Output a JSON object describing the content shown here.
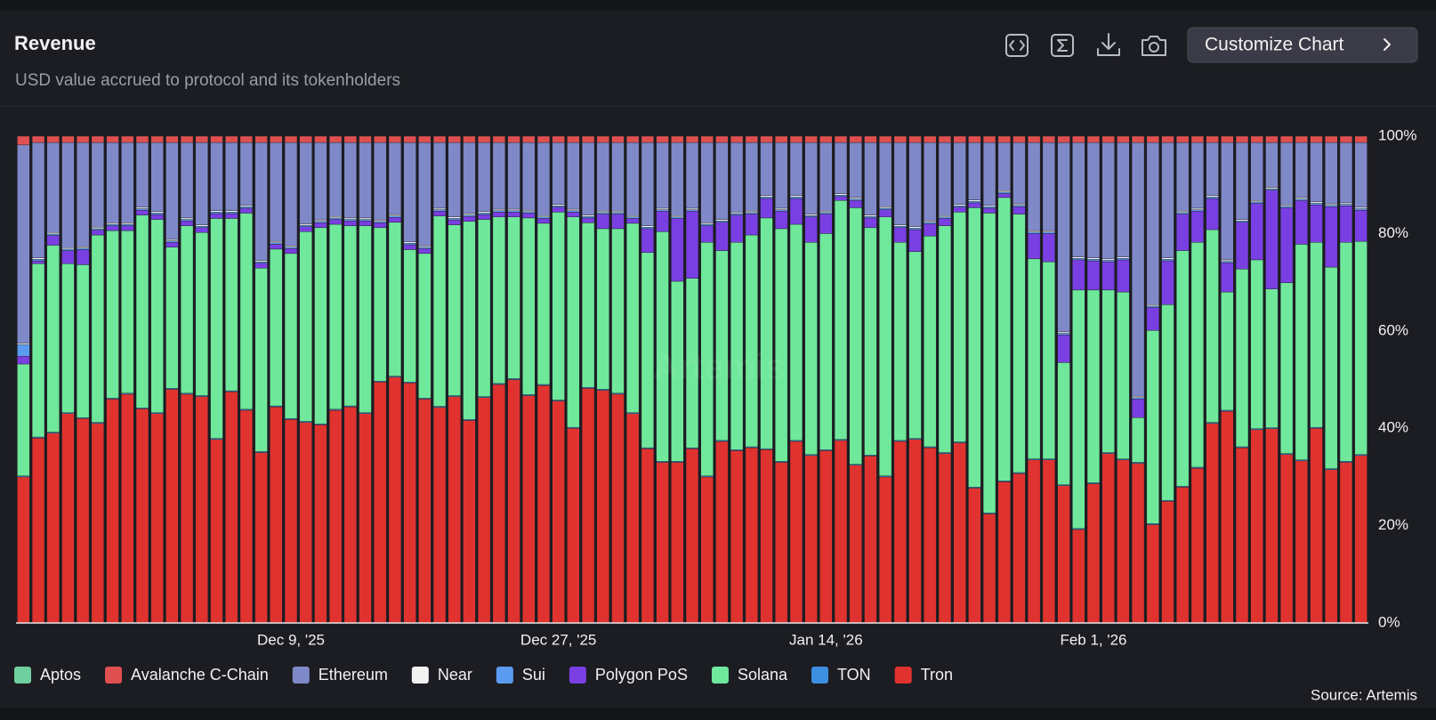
{
  "chart_data": {
    "type": "stacked_bar_percent",
    "title": "Revenue",
    "subtitle": "USD value accrued to protocol and its tokenholders",
    "button": "Customize Chart",
    "watermark": "Artemis",
    "source": "Source: Artemis",
    "categories": [
      null,
      null,
      null,
      null,
      null,
      null,
      null,
      null,
      null,
      null,
      null,
      null,
      null,
      null,
      null,
      null,
      null,
      null,
      "Dec 9, '25",
      null,
      null,
      null,
      null,
      null,
      null,
      null,
      null,
      null,
      null,
      null,
      null,
      null,
      null,
      null,
      null,
      null,
      "Dec 27, '25",
      null,
      null,
      null,
      null,
      null,
      null,
      null,
      null,
      null,
      null,
      null,
      null,
      null,
      null,
      null,
      null,
      null,
      "Jan 14, '26",
      null,
      null,
      null,
      null,
      null,
      null,
      null,
      null,
      null,
      null,
      null,
      null,
      null,
      null,
      null,
      null,
      null,
      "Feb 1, '26",
      null,
      null,
      null,
      null,
      null,
      null,
      null,
      null,
      null,
      null,
      null,
      null,
      null,
      null,
      null,
      null,
      null,
      null
    ],
    "ylim": [
      0,
      100
    ],
    "yticks": [
      {
        "value": 0,
        "label": "0%"
      },
      {
        "value": 20,
        "label": "20%"
      },
      {
        "value": 40,
        "label": "40%"
      },
      {
        "value": 60,
        "label": "60%"
      },
      {
        "value": 80,
        "label": "80%"
      },
      {
        "value": 100,
        "label": "100%"
      }
    ],
    "grid": false,
    "legend": "bottom",
    "series": [
      {
        "name": "Aptos",
        "color": "#6fcf9f",
        "values": [
          0,
          0,
          0,
          0,
          0,
          0,
          0,
          0,
          0,
          0,
          0,
          0,
          0,
          0,
          0,
          0,
          0,
          0,
          0,
          0,
          0,
          0,
          0,
          0,
          0,
          0,
          0,
          0,
          0,
          0,
          0,
          0,
          0,
          0,
          0,
          0,
          0,
          0,
          0,
          0,
          0,
          0,
          0,
          0,
          0,
          0,
          0,
          0,
          0,
          0,
          0,
          0,
          0,
          0,
          0,
          0,
          0,
          0,
          0,
          0,
          0,
          0,
          0,
          0,
          0,
          0,
          0,
          0,
          0,
          0,
          0,
          0,
          0,
          0,
          0,
          0,
          0,
          0,
          0,
          0,
          0,
          0,
          0,
          0,
          0,
          0,
          0,
          0,
          0,
          0,
          0
        ]
      },
      {
        "name": "Avalanche C-Chain",
        "color": "#e05050",
        "values": [
          1.8,
          1.3,
          1.3,
          1.3,
          1.3,
          1.3,
          1.3,
          1.3,
          1.3,
          1.3,
          1.3,
          1.3,
          1.3,
          1.3,
          1.3,
          1.3,
          1.3,
          1.3,
          1.3,
          1.3,
          1.3,
          1.3,
          1.3,
          1.3,
          1.3,
          1.3,
          1.3,
          1.3,
          1.3,
          1.3,
          1.3,
          1.3,
          1.3,
          1.3,
          1.3,
          1.3,
          1.3,
          1.3,
          1.3,
          1.3,
          1.3,
          1.3,
          1.3,
          1.3,
          1.3,
          1.3,
          1.3,
          1.3,
          1.3,
          1.3,
          1.3,
          1.3,
          1.3,
          1.3,
          1.3,
          1.3,
          1.3,
          1.3,
          1.3,
          1.3,
          1.3,
          1.3,
          1.3,
          1.3,
          1.3,
          1.3,
          1.3,
          1.3,
          1.3,
          1.3,
          1.3,
          1.3,
          1.3,
          1.3,
          1.3,
          1.3,
          1.3,
          1.3,
          1.3,
          1.3,
          1.3,
          1.3,
          1.3,
          1.3,
          1.3,
          1.3,
          1.3,
          1.3,
          1.3,
          1.3,
          1.3
        ]
      },
      {
        "name": "Ethereum",
        "color": "#8089c8",
        "values": [
          40.7,
          23.7,
          18.5,
          21.6,
          21.4,
          17.4,
          16.5,
          16.5,
          13.3,
          14.2,
          19.9,
          15.5,
          16.9,
          14,
          14,
          12.9,
          24.2,
          20.3,
          21.2,
          16.7,
          15.9,
          15.2,
          15.5,
          15.5,
          15.9,
          14.8,
          20.4,
          21.2,
          13.5,
          15.3,
          14.6,
          14.2,
          13.7,
          13.7,
          13.9,
          15,
          12.7,
          13.7,
          14.9,
          14.1,
          14.1,
          15,
          17.1,
          13.5,
          15,
          13.5,
          16.5,
          15.8,
          14.3,
          14.1,
          10.9,
          13.5,
          10.9,
          14.7,
          14.1,
          10.5,
          11.3,
          14.9,
          13.2,
          16.9,
          17.3,
          16.1,
          15,
          12.7,
          11.8,
          12.9,
          9.9,
          12.6,
          18.1,
          18.1,
          38.9,
          23.5,
          23.7,
          23.9,
          23.5,
          52.1,
          33.3,
          23.7,
          14.1,
          13.5,
          10.9,
          24.1,
          15.8,
          11.9,
          9.2,
          12.8,
          11.3,
          12.2,
          12.6,
          12.4,
          13.3
        ]
      },
      {
        "name": "Near",
        "color": "#f2f2f2",
        "values": [
          0.3,
          0.3,
          0.3,
          0.3,
          0.3,
          0.3,
          0.3,
          0.3,
          0.3,
          0.3,
          0.3,
          0.3,
          0.3,
          0.3,
          0.3,
          0.3,
          0.3,
          0.3,
          0.3,
          0.3,
          0.3,
          0.3,
          0.3,
          0.3,
          0.3,
          0.3,
          0.3,
          0.3,
          0.3,
          0.3,
          0.3,
          0.3,
          0.3,
          0.3,
          0.3,
          0.3,
          0.3,
          0.3,
          0.3,
          0.3,
          0.3,
          0.3,
          0.3,
          0.3,
          0.3,
          0.3,
          0.3,
          0.3,
          0.3,
          0.3,
          0.3,
          0.3,
          0.3,
          0.3,
          0.3,
          0.3,
          0.3,
          0.3,
          0.3,
          0.3,
          0.3,
          0.3,
          0.3,
          0.3,
          0.3,
          0.3,
          0.3,
          0.3,
          0.3,
          0.3,
          0.3,
          0.3,
          0.3,
          0.3,
          0.3,
          0.3,
          0.3,
          0.3,
          0.3,
          0.3,
          0.3,
          0.3,
          0.3,
          0.3,
          0.3,
          0.3,
          0.3,
          0.3,
          0.3,
          0.3,
          0.3
        ]
      },
      {
        "name": "Sui",
        "color": "#5a9bf0",
        "values": [
          2.4,
          0.3,
          0.3,
          0.3,
          0.3,
          0.3,
          0.3,
          0.3,
          0.3,
          0.3,
          0.3,
          0.3,
          0.3,
          0.3,
          0.3,
          0.3,
          0.3,
          0.3,
          0.3,
          0.3,
          0.3,
          0.3,
          0.3,
          0.3,
          0.3,
          0.3,
          0.3,
          0.3,
          0.3,
          0.3,
          0.3,
          0.3,
          0.3,
          0.3,
          0.3,
          0.3,
          0.3,
          0.3,
          0.3,
          0.3,
          0.3,
          0.3,
          0.3,
          0.3,
          0.3,
          0.3,
          0.3,
          0.3,
          0.3,
          0.3,
          0.3,
          0.3,
          0.3,
          0.3,
          0.3,
          0.3,
          0.3,
          0.3,
          0.3,
          0.3,
          0.3,
          0.3,
          0.3,
          0.3,
          0.3,
          0.3,
          0.3,
          0.3,
          0.3,
          0.3,
          0.3,
          0.3,
          0.3,
          0.3,
          0.3,
          0.3,
          0.3,
          0.3,
          0.3,
          0.3,
          0.3,
          0.3,
          0.3,
          0.3,
          0.3,
          0.3,
          0.3,
          0.3,
          0.3,
          0.3,
          0.3
        ]
      },
      {
        "name": "Polygon PoS",
        "color": "#7a3fe2",
        "values": [
          1.6,
          0.6,
          2,
          2.7,
          3.1,
          1,
          1,
          1,
          1,
          1,
          1,
          1,
          1,
          1,
          1,
          1,
          1,
          1,
          1,
          1,
          1,
          1,
          1,
          1,
          1,
          1,
          1,
          1,
          1,
          1,
          1,
          1,
          1,
          1,
          1,
          1,
          1,
          1,
          1,
          3,
          3,
          1,
          4.9,
          4.2,
          12.9,
          13.8,
          3.4,
          5.8,
          5.6,
          4.3,
          4,
          3.6,
          5.3,
          5.2,
          4,
          0.8,
          1.5,
          2,
          1.5,
          3,
          4.5,
          2.5,
          1.5,
          1,
          1,
          1,
          0.8,
          1.5,
          5.2,
          5.8,
          5.7,
          6.2,
          6,
          5.8,
          6.6,
          3.8,
          4.7,
          9,
          7.5,
          6.4,
          6.4,
          6,
          9.6,
          11.6,
          20.3,
          15.4,
          9,
          7.7,
          12.4,
          7.5,
          6.4
        ]
      },
      {
        "name": "Solana",
        "color": "#6fe89b",
        "values": [
          23,
          35.6,
          38.4,
          30.6,
          31.4,
          38.5,
          34.4,
          33.4,
          39.6,
          39.7,
          29,
          34.4,
          33.5,
          45.2,
          35.4,
          40.3,
          37.7,
          32.2,
          33.9,
          39,
          40.3,
          38,
          37,
          38.4,
          31.5,
          31.6,
          27.2,
          29.7,
          39.1,
          35.1,
          40.7,
          36.4,
          34.2,
          33.2,
          36.3,
          33.1,
          38.6,
          43.2,
          33.8,
          33,
          33.8,
          38.9,
          40.1,
          47.2,
          37,
          34.8,
          48,
          39,
          42.6,
          43.5,
          47.4,
          47.8,
          44.4,
          43.6,
          44.4,
          49.1,
          52.7,
          46.7,
          53.2,
          40.7,
          38.4,
          43.3,
          46.6,
          47.2,
          57.4,
          61.6,
          58.2,
          53.1,
          41.1,
          40.5,
          25.1,
          49,
          39.6,
          33.4,
          34.3,
          9.2,
          39.7,
          40.2,
          48.4,
          46.2,
          39.6,
          24.3,
          36.5,
          34.7,
          28.5,
          35.1,
          44.3,
          38,
          41.4,
          45,
          43.8
        ]
      },
      {
        "name": "TON",
        "color": "#3d8fe0",
        "values": [
          0.2,
          0.2,
          0.2,
          0.2,
          0.2,
          0.2,
          0.2,
          0.2,
          0.2,
          0.2,
          0.2,
          0.2,
          0.2,
          0.2,
          0.2,
          0.2,
          0.2,
          0.2,
          0.2,
          0.2,
          0.2,
          0.2,
          0.2,
          0.2,
          0.2,
          0.2,
          0.2,
          0.2,
          0.2,
          0.2,
          0.2,
          0.2,
          0.2,
          0.2,
          0.2,
          0.2,
          0.2,
          0.2,
          0.2,
          0.2,
          0.2,
          0.2,
          0.2,
          0.2,
          0.2,
          0.2,
          0.2,
          0.2,
          0.2,
          0.2,
          0.2,
          0.2,
          0.2,
          0.2,
          0.2,
          0.2,
          0.2,
          0.2,
          0.2,
          0.2,
          0.2,
          0.2,
          0.2,
          0.2,
          0.2,
          0.2,
          0.2,
          0.2,
          0.2,
          0.2,
          0.2,
          0.2,
          0.2,
          0.2,
          0.2,
          0.2,
          0.2,
          0.2,
          0.2,
          0.2,
          0.2,
          0.2,
          0.2,
          0.2,
          0.2,
          0.2,
          0.2,
          0.2,
          0.2,
          0.2,
          0.2
        ]
      },
      {
        "name": "Tron",
        "color": "#e0332f",
        "values": [
          30,
          38,
          39,
          43,
          42,
          41,
          46,
          47,
          44,
          43,
          48,
          47,
          46.5,
          37.7,
          47.5,
          43.7,
          35,
          44.4,
          41.8,
          41.2,
          40.7,
          43.7,
          44.4,
          43,
          49.5,
          50.5,
          49.3,
          46,
          44.3,
          46.5,
          41.6,
          46.3,
          49,
          50,
          46.7,
          48.8,
          45.6,
          40,
          48.2,
          47.8,
          47,
          43,
          35.8,
          33,
          33,
          35.8,
          30,
          37.3,
          35.4,
          36,
          35.6,
          33,
          37.3,
          34.4,
          35.4,
          37.5,
          32.4,
          34.3,
          30,
          37.3,
          37.7,
          36,
          34.8,
          37,
          27.7,
          22.4,
          29,
          30.7,
          33.5,
          33.5,
          28.2,
          19.2,
          28.6,
          34.8,
          33.5,
          32.8,
          20.2,
          25,
          27.9,
          31.8,
          41,
          43.5,
          36,
          39.7,
          39.9,
          34.6,
          33.3,
          40,
          31.5,
          33,
          34.4
        ]
      }
    ]
  }
}
